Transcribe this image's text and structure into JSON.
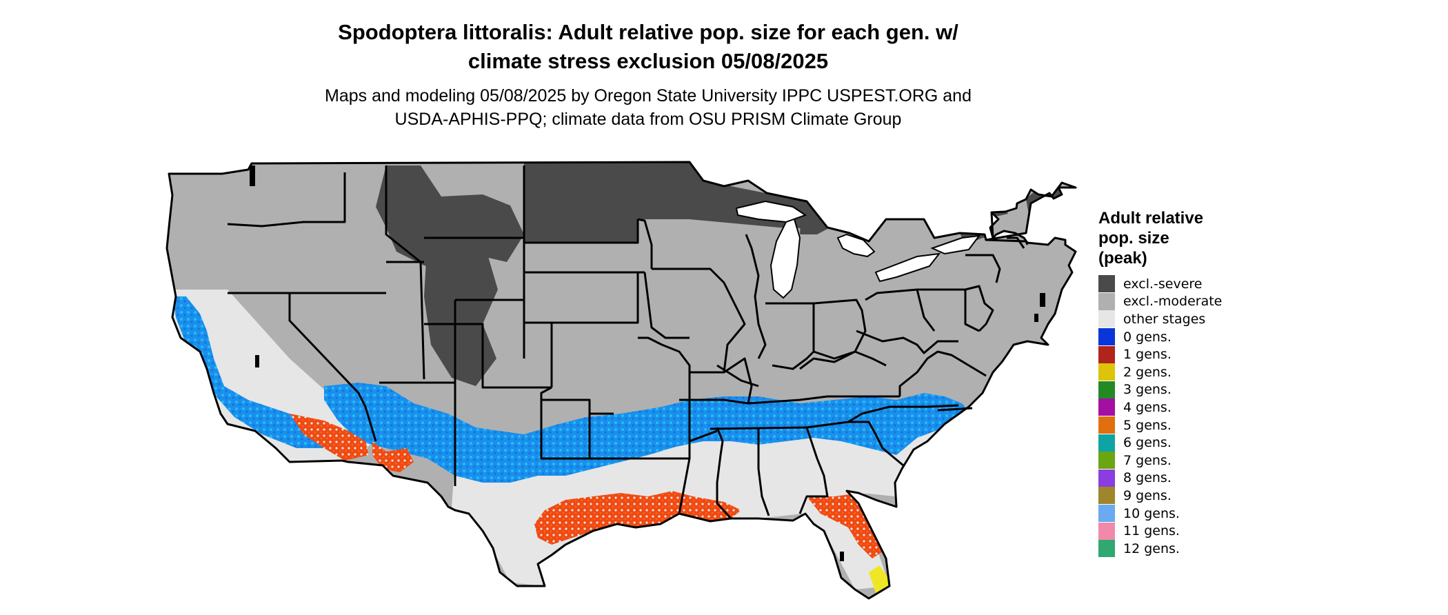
{
  "header": {
    "title_line1": "Spodoptera littoralis: Adult relative pop. size for each gen. w/",
    "title_line2": "climate stress exclusion 05/08/2025",
    "subtitle_line1": "Maps and modeling 05/08/2025 by Oregon State University IPPC USPEST.ORG and",
    "subtitle_line2": "USDA-APHIS-PPQ; climate data from OSU PRISM Climate Group"
  },
  "legend": {
    "title_line1": "Adult relative",
    "title_line2": "pop. size",
    "title_line3": "(peak)",
    "items": [
      {
        "label": "excl.-severe",
        "color": "#4a4a4a"
      },
      {
        "label": "excl.-moderate",
        "color": "#b0b0b0"
      },
      {
        "label": "other stages",
        "color": "#e6e6e6"
      },
      {
        "label": "0 gens.",
        "color": "#0a35d8"
      },
      {
        "label": "1 gens.",
        "color": "#b0241a"
      },
      {
        "label": "2 gens.",
        "color": "#dcc40a"
      },
      {
        "label": "3 gens.",
        "color": "#238a23"
      },
      {
        "label": "4 gens.",
        "color": "#a30fa3"
      },
      {
        "label": "5 gens.",
        "color": "#e0700f"
      },
      {
        "label": "6 gens.",
        "color": "#10a3a3"
      },
      {
        "label": "7 gens.",
        "color": "#6aa512"
      },
      {
        "label": "8 gens.",
        "color": "#8a3ee0"
      },
      {
        "label": "9 gens.",
        "color": "#a0862a"
      },
      {
        "label": "10 gens.",
        "color": "#6aaaf0"
      },
      {
        "label": "11 gens.",
        "color": "#f08aa8"
      },
      {
        "label": "12 gens.",
        "color": "#30a870"
      }
    ]
  },
  "map_colors": {
    "severe": "#4a4a4a",
    "moderate": "#b0b0b0",
    "other": "#e6e6e6",
    "zero_gens": "#1a8fee",
    "zero_gens_light": "#22c0f0",
    "one_gen": "#f04a12",
    "two_gens": "#f0e628",
    "border": "#000000"
  }
}
